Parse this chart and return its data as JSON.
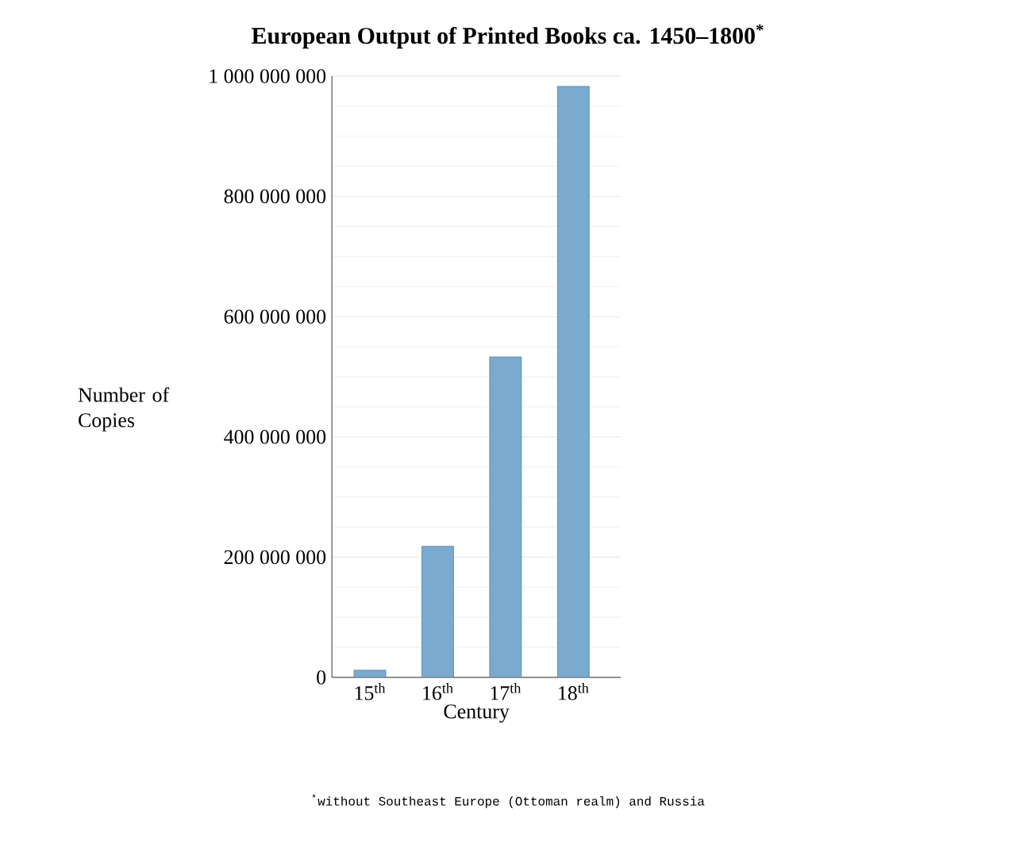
{
  "chart_data": {
    "type": "bar",
    "title": "European Output of Printed Books ca. 1450–1800$^{*}$",
    "categories": [
      "15$^{th}$",
      "16$^{th}$",
      "17$^{th}$",
      "18$^{th}$"
    ],
    "values": [
      12000000,
      218000000,
      533000000,
      983000000
    ],
    "color": "#7aaad0",
    "xlabel": "Century",
    "ylabel": "Number of Copies",
    "ylim": [
      0,
      1000000000
    ],
    "yticks": [
      0,
      {
        "value": 200000000,
        "label": "200 000 000"
      },
      {
        "value": 400000000,
        "label": "400 000 000"
      },
      {
        "value": 600000000,
        "label": "600 000 000"
      },
      {
        "value": 800000000,
        "label": "800 000 000"
      },
      {
        "value": 1000000000,
        "label": "1 000 000 000"
      }
    ],
    "grid": "y",
    "annotations": [
      "$^{*}$without Southeast Europe (Ottoman realm) and Russia"
    ]
  }
}
